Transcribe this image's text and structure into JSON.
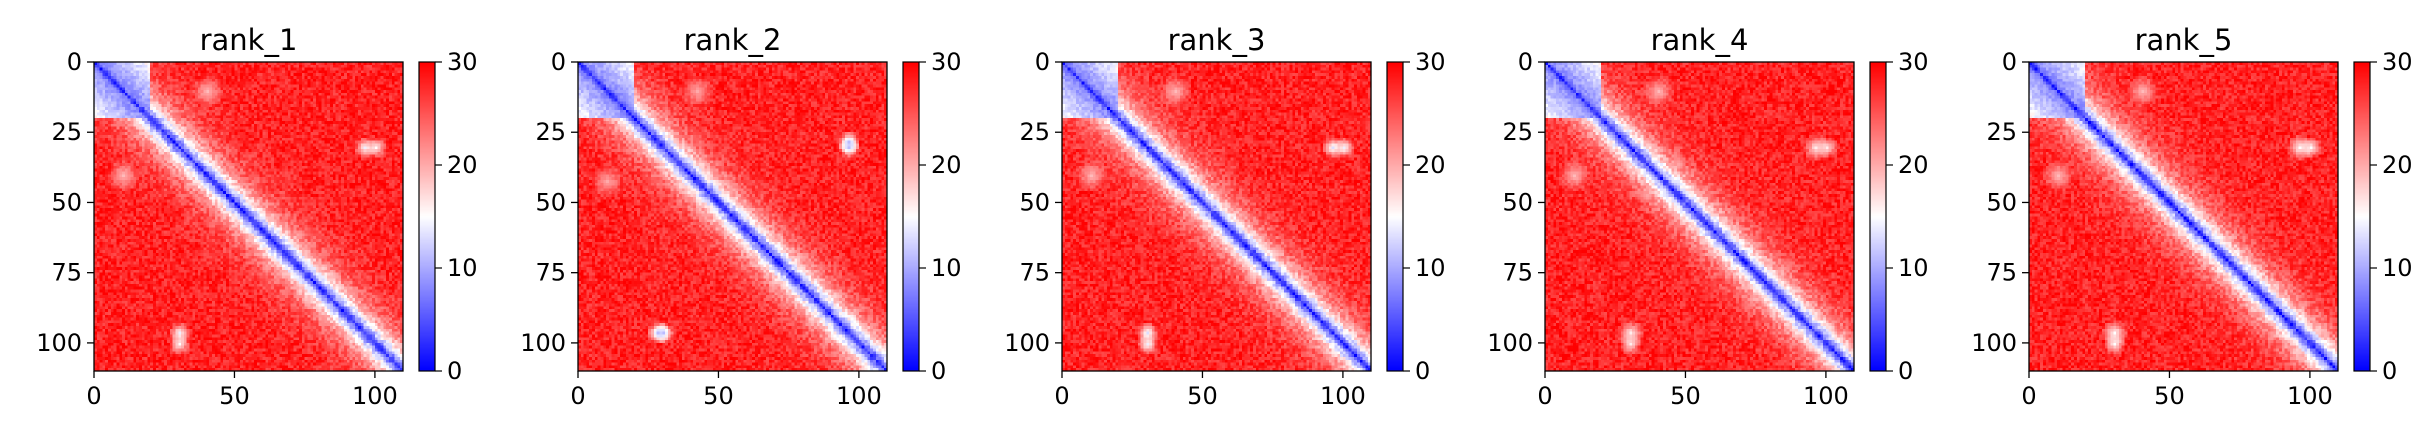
{
  "chart_data": [
    {
      "type": "heatmap",
      "title": "rank_1",
      "xlabel": "",
      "ylabel": "",
      "xlim": [
        0,
        110
      ],
      "ylim": [
        110,
        0
      ],
      "xticks": [
        0,
        50,
        100
      ],
      "yticks": [
        0,
        25,
        50,
        75,
        100
      ],
      "colorbar": {
        "min": 0,
        "max": 30,
        "ticks": [
          0,
          10,
          20,
          30
        ],
        "colormap": "bwr"
      },
      "n": 110,
      "seed": 11,
      "features": [
        {
          "kind": "block",
          "start": 0,
          "end": 20,
          "value": 6
        },
        {
          "kind": "blob",
          "i": 30,
          "j": 96,
          "value": 14,
          "r": 4
        },
        {
          "kind": "blob",
          "i": 100,
          "j": 30,
          "value": 15,
          "r": 4
        },
        {
          "kind": "blob",
          "i": 10,
          "j": 40,
          "value": 19,
          "r": 6
        }
      ]
    },
    {
      "type": "heatmap",
      "title": "rank_2",
      "xlabel": "",
      "ylabel": "",
      "xlim": [
        0,
        110
      ],
      "ylim": [
        110,
        0
      ],
      "xticks": [
        0,
        50,
        100
      ],
      "yticks": [
        0,
        25,
        50,
        75,
        100
      ],
      "colorbar": {
        "min": 0,
        "max": 30,
        "ticks": [
          0,
          10,
          20,
          30
        ],
        "colormap": "bwr"
      },
      "n": 110,
      "seed": 23,
      "features": [
        {
          "kind": "block",
          "start": 0,
          "end": 20,
          "value": 6
        },
        {
          "kind": "blob",
          "i": 28,
          "j": 96,
          "value": 11,
          "r": 4
        },
        {
          "kind": "blob",
          "i": 96,
          "j": 30,
          "value": 11,
          "r": 4
        },
        {
          "kind": "blob",
          "i": 10,
          "j": 42,
          "value": 20,
          "r": 6
        }
      ]
    },
    {
      "type": "heatmap",
      "title": "rank_3",
      "xlabel": "",
      "ylabel": "",
      "xlim": [
        0,
        110
      ],
      "ylim": [
        110,
        0
      ],
      "xticks": [
        0,
        50,
        100
      ],
      "yticks": [
        0,
        25,
        50,
        75,
        100
      ],
      "colorbar": {
        "min": 0,
        "max": 30,
        "ticks": [
          0,
          10,
          20,
          30
        ],
        "colormap": "bwr"
      },
      "n": 110,
      "seed": 37,
      "features": [
        {
          "kind": "block",
          "start": 0,
          "end": 20,
          "value": 6
        },
        {
          "kind": "blob",
          "i": 30,
          "j": 96,
          "value": 13,
          "r": 4
        },
        {
          "kind": "blob",
          "i": 100,
          "j": 30,
          "value": 14,
          "r": 4
        },
        {
          "kind": "blob",
          "i": 10,
          "j": 40,
          "value": 19,
          "r": 6
        }
      ]
    },
    {
      "type": "heatmap",
      "title": "rank_4",
      "xlabel": "",
      "ylabel": "",
      "xlim": [
        0,
        110
      ],
      "ylim": [
        110,
        0
      ],
      "xticks": [
        0,
        50,
        100
      ],
      "yticks": [
        0,
        25,
        50,
        75,
        100
      ],
      "colorbar": {
        "min": 0,
        "max": 30,
        "ticks": [
          0,
          10,
          20,
          30
        ],
        "colormap": "bwr"
      },
      "n": 110,
      "seed": 41,
      "features": [
        {
          "kind": "block",
          "start": 0,
          "end": 20,
          "value": 6
        },
        {
          "kind": "blob",
          "i": 30,
          "j": 96,
          "value": 16,
          "r": 5
        },
        {
          "kind": "blob",
          "i": 100,
          "j": 30,
          "value": 16,
          "r": 4
        },
        {
          "kind": "blob",
          "i": 10,
          "j": 40,
          "value": 19,
          "r": 6
        }
      ]
    },
    {
      "type": "heatmap",
      "title": "rank_5",
      "xlabel": "",
      "ylabel": "",
      "xlim": [
        0,
        110
      ],
      "ylim": [
        110,
        0
      ],
      "xticks": [
        0,
        50,
        100
      ],
      "yticks": [
        0,
        25,
        50,
        75,
        100
      ],
      "colorbar": {
        "min": 0,
        "max": 30,
        "ticks": [
          0,
          10,
          20,
          30
        ],
        "colormap": "bwr"
      },
      "n": 110,
      "seed": 53,
      "features": [
        {
          "kind": "block",
          "start": 0,
          "end": 20,
          "value": 6
        },
        {
          "kind": "blob",
          "i": 30,
          "j": 96,
          "value": 15,
          "r": 5
        },
        {
          "kind": "blob",
          "i": 100,
          "j": 30,
          "value": 15,
          "r": 4
        },
        {
          "kind": "blob",
          "i": 10,
          "j": 40,
          "value": 19,
          "r": 6
        }
      ]
    }
  ]
}
